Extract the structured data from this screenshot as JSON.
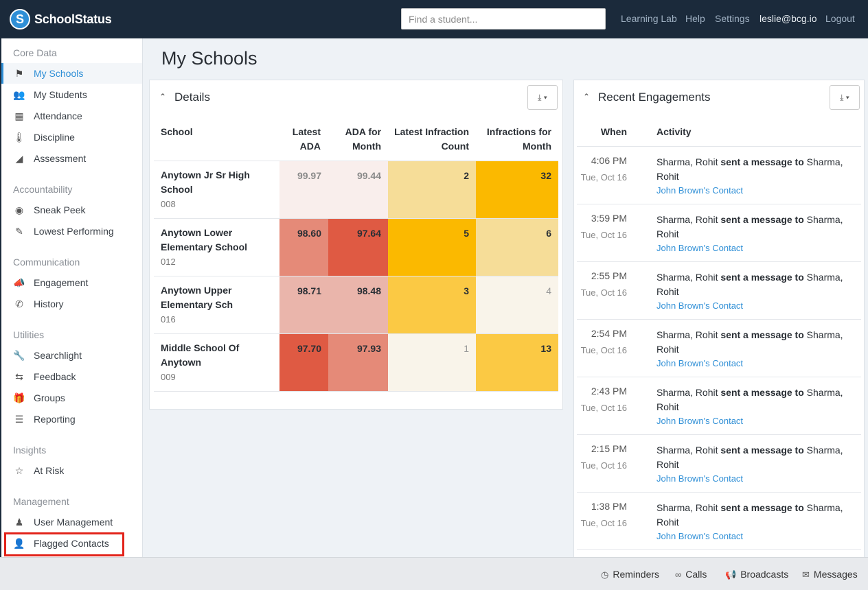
{
  "header": {
    "app_name": "SchoolStatus",
    "logo_letter": "S",
    "search_placeholder": "Find a student...",
    "nav": [
      "Learning Lab",
      "Help",
      "Settings"
    ],
    "user": "leslie@bcg.io",
    "logout": "Logout"
  },
  "sidebar": {
    "sections": {
      "core": "Core Data",
      "accountability": "Accountability",
      "communication": "Communication",
      "utilities": "Utilities",
      "insights": "Insights",
      "management": "Management"
    },
    "items": {
      "my_schools": {
        "label": "My Schools",
        "icon": "school-icon"
      },
      "my_students": {
        "label": "My Students",
        "icon": "students-icon"
      },
      "attendance": {
        "label": "Attendance",
        "icon": "calendar-icon"
      },
      "discipline": {
        "label": "Discipline",
        "icon": "thermometer-icon"
      },
      "assessment": {
        "label": "Assessment",
        "icon": "area-chart-icon"
      },
      "sneak_peek": {
        "label": "Sneak Peek",
        "icon": "eye-icon"
      },
      "lowest_performing": {
        "label": "Lowest Performing",
        "icon": "pencil-icon"
      },
      "engagement": {
        "label": "Engagement",
        "icon": "megaphone-icon"
      },
      "history": {
        "label": "History",
        "icon": "phone-icon"
      },
      "searchlight": {
        "label": "Searchlight",
        "icon": "wrench-icon"
      },
      "feedback": {
        "label": "Feedback",
        "icon": "retweet-icon"
      },
      "groups": {
        "label": "Groups",
        "icon": "gift-icon"
      },
      "reporting": {
        "label": "Reporting",
        "icon": "list-icon"
      },
      "at_risk": {
        "label": "At Risk",
        "icon": "risk-icon"
      },
      "user_management": {
        "label": "User Management",
        "icon": "person-icon"
      },
      "flagged_contacts": {
        "label": "Flagged Contacts",
        "icon": "user-x-icon"
      }
    }
  },
  "main": {
    "title": "My Schools",
    "details": {
      "title": "Details",
      "columns": {
        "school": "School",
        "latest_ada": [
          "Latest",
          "ADA"
        ],
        "ada_month": [
          "ADA for",
          "Month"
        ],
        "latest_infraction": [
          "Latest Infraction",
          "Count"
        ],
        "infractions_month": [
          "Infractions for",
          "Month"
        ]
      },
      "rows": [
        {
          "name": "Anytown Jr Sr High School",
          "code": "008",
          "latest_ada": "99.97",
          "ada_month": "99.44",
          "latest_infraction": "2",
          "infractions_month": "32"
        },
        {
          "name": "Anytown Lower Elementary School",
          "code": "012",
          "latest_ada": "98.60",
          "ada_month": "97.64",
          "latest_infraction": "5",
          "infractions_month": "6"
        },
        {
          "name": "Anytown Upper Elementary Sch",
          "code": "016",
          "latest_ada": "98.71",
          "ada_month": "98.48",
          "latest_infraction": "3",
          "infractions_month": "4"
        },
        {
          "name": "Middle School Of Anytown",
          "code": "009",
          "latest_ada": "97.70",
          "ada_month": "97.93",
          "latest_infraction": "1",
          "infractions_month": "13"
        }
      ],
      "cell_colors": {
        "ada_very_light": "#f9eeec",
        "ada_medium": "#e58a78",
        "ada_dark": "#df5a43",
        "ada_light": "#eab5ab",
        "inf_light": "#f6dd98",
        "inf_dark": "#fbb900",
        "inf_medium": "#fbc944",
        "inf_very_light": "#f9f4ea"
      }
    },
    "engagements": {
      "title": "Recent Engagements",
      "columns": {
        "when": "When",
        "activity": "Activity"
      },
      "items": [
        {
          "time": "4:06 PM",
          "date": "Tue, Oct 16",
          "from": "Sharma, Rohit",
          "verb": "sent a message to",
          "to": "Sharma, Rohit",
          "link": "John Brown's Contact"
        },
        {
          "time": "3:59 PM",
          "date": "Tue, Oct 16",
          "from": "Sharma, Rohit",
          "verb": "sent a message to",
          "to": "Sharma, Rohit",
          "link": "John Brown's Contact"
        },
        {
          "time": "2:55 PM",
          "date": "Tue, Oct 16",
          "from": "Sharma, Rohit",
          "verb": "sent a message to",
          "to": "Sharma, Rohit",
          "link": "John Brown's Contact"
        },
        {
          "time": "2:54 PM",
          "date": "Tue, Oct 16",
          "from": "Sharma, Rohit",
          "verb": "sent a message to",
          "to": "Sharma, Rohit",
          "link": "John Brown's Contact"
        },
        {
          "time": "2:43 PM",
          "date": "Tue, Oct 16",
          "from": "Sharma, Rohit",
          "verb": "sent a message to",
          "to": "Sharma, Rohit",
          "link": "John Brown's Contact"
        },
        {
          "time": "2:15 PM",
          "date": "Tue, Oct 16",
          "from": "Sharma, Rohit",
          "verb": "sent a message to",
          "to": "Sharma, Rohit",
          "link": "John Brown's Contact"
        },
        {
          "time": "1:38 PM",
          "date": "Tue, Oct 16",
          "from": "Sharma, Rohit",
          "verb": "sent a message to",
          "to": "Sharma, Rohit",
          "link": "John Brown's Contact"
        }
      ]
    }
  },
  "bottombar": {
    "reminders": "Reminders",
    "calls": "Calls",
    "broadcasts": "Broadcasts",
    "messages": "Messages"
  },
  "colors": {
    "header_bg": "#1b2a3b",
    "accent": "#2f8fd6",
    "highlight": "#e2231a"
  }
}
